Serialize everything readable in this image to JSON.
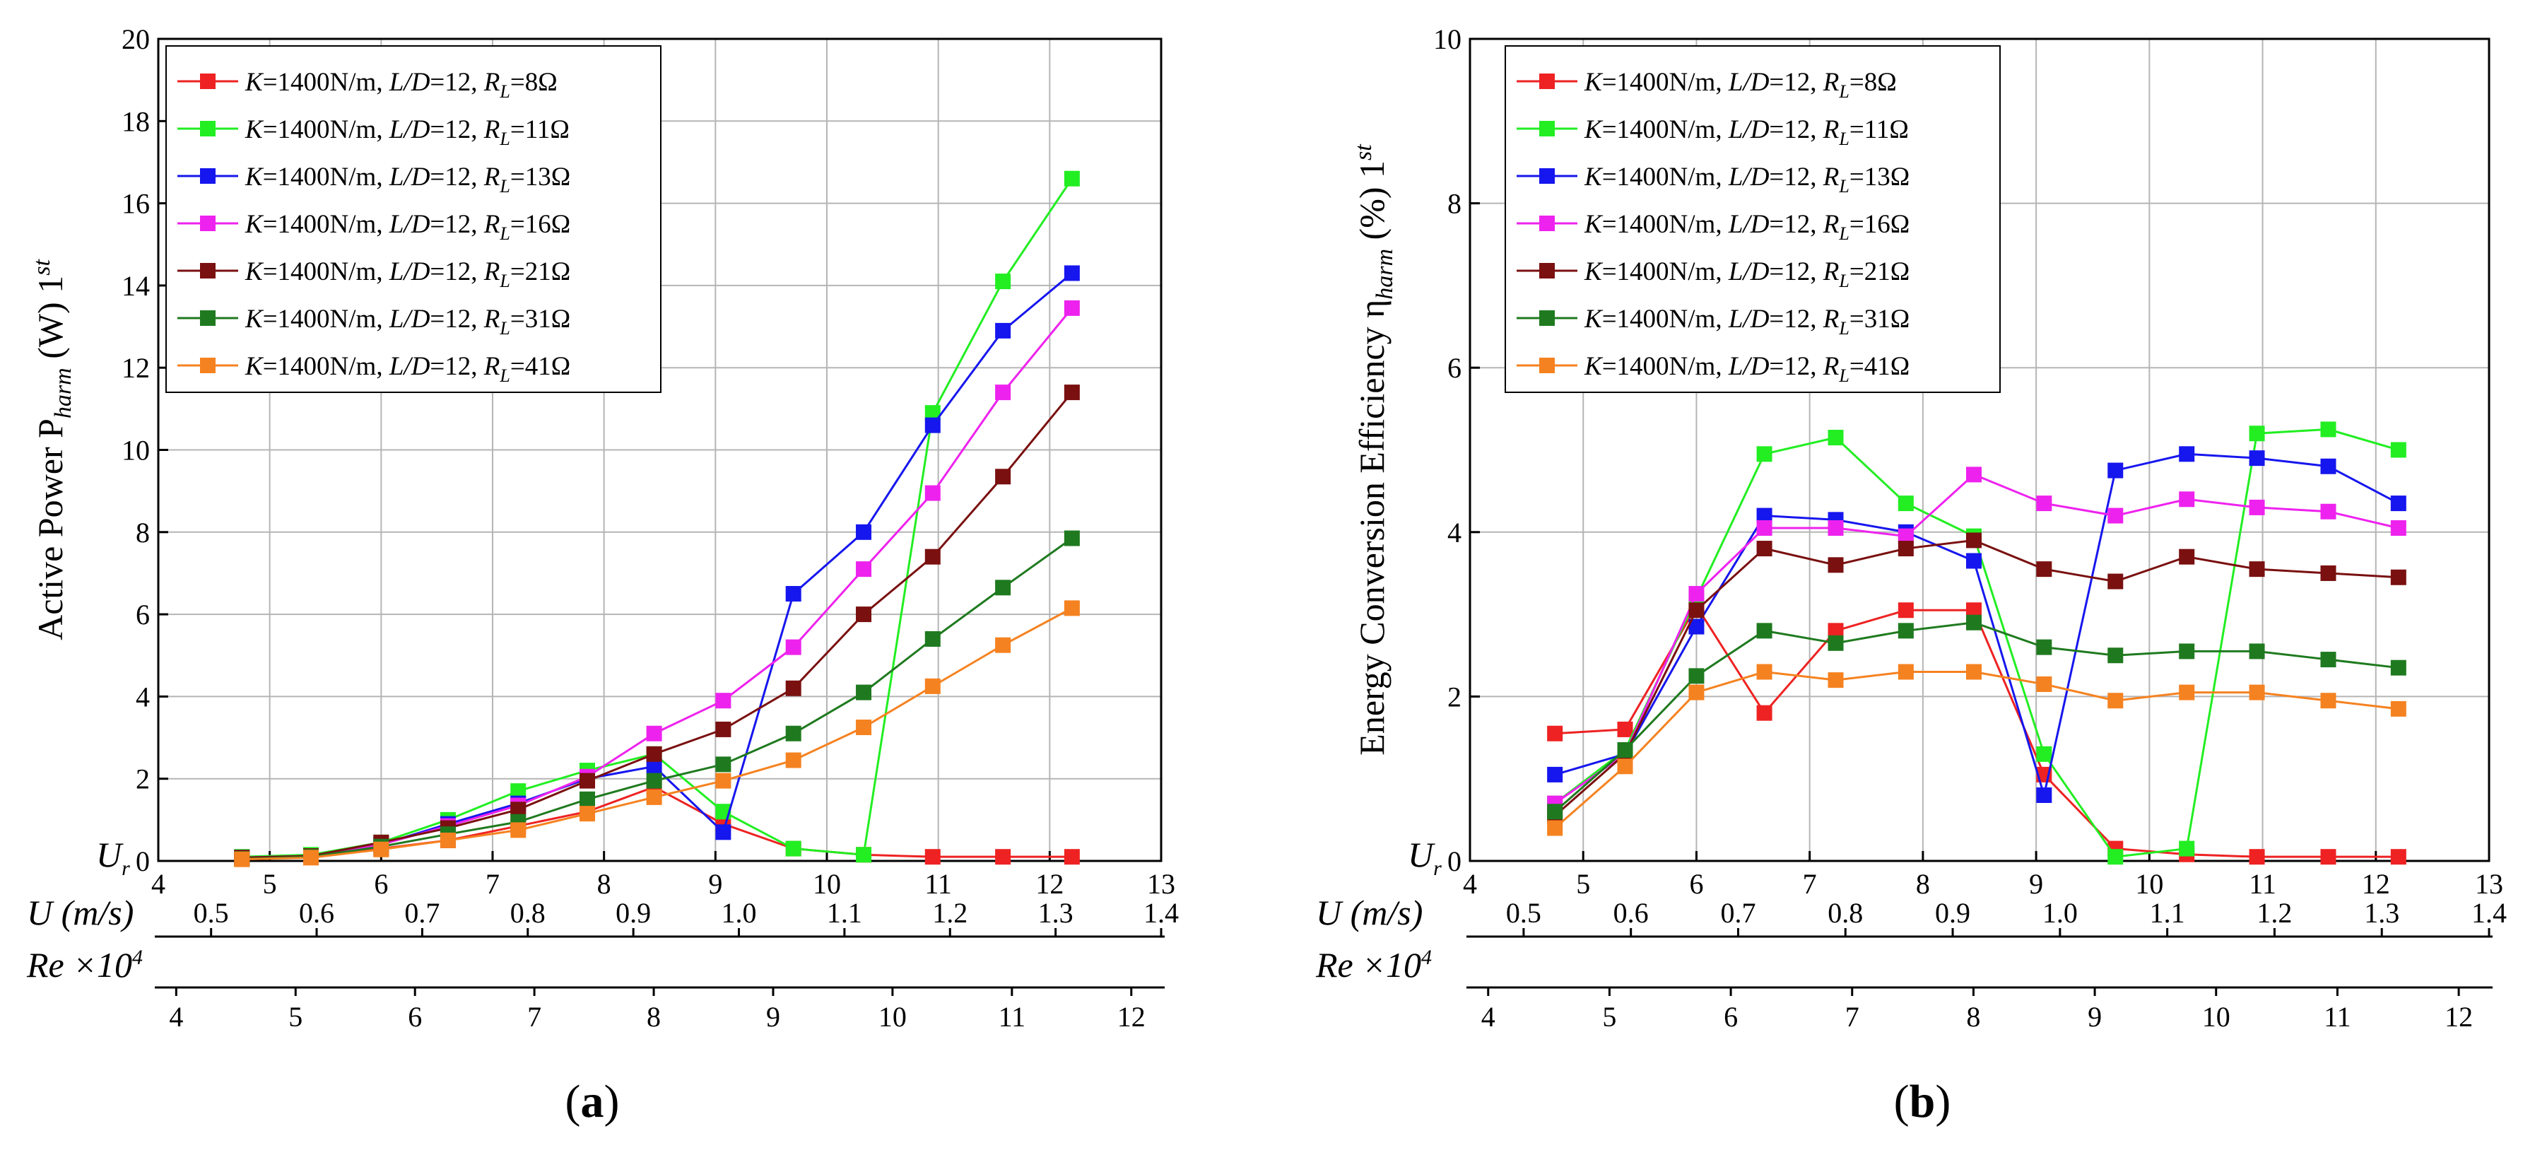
{
  "figure": {
    "panel_labels": [
      "(a)",
      "(b)"
    ]
  },
  "chart_data": [
    {
      "type": "line",
      "panel": "(a)",
      "ylabel": "Active Power P_harm (W) 1st",
      "ylabel_parts": {
        "main": "Active Power P",
        "sub": "harm",
        "unit": " (W) 1",
        "sup": "st"
      },
      "ylim": [
        0,
        20
      ],
      "yticks": [
        0,
        2,
        4,
        6,
        8,
        10,
        12,
        14,
        16,
        18,
        20
      ],
      "xlim": [
        4,
        13
      ],
      "grid": true,
      "legend_position": "top-left",
      "axes": [
        {
          "label": "U_r",
          "label_main": "U",
          "label_sub": "r",
          "range": [
            4,
            13
          ],
          "ticks": [
            4,
            5,
            6,
            7,
            8,
            9,
            10,
            11,
            12,
            13
          ]
        },
        {
          "label": "U (m/s)",
          "range": [
            0.45,
            1.4
          ],
          "ticks": [
            "0.5",
            "0.6",
            "0.7",
            "0.8",
            "0.9",
            "1.0",
            "1.1",
            "1.2",
            "1.3",
            "1.4"
          ]
        },
        {
          "label": "Re ×10^4",
          "label_main": "Re ×10",
          "label_sup": "4",
          "range": [
            3.85,
            12.25
          ],
          "ticks": [
            4,
            5,
            6,
            7,
            8,
            9,
            10,
            11,
            12
          ]
        }
      ],
      "x": [
        4.75,
        5.37,
        6.0,
        6.6,
        7.23,
        7.85,
        8.45,
        9.07,
        9.7,
        10.33,
        10.95,
        11.58,
        12.2
      ],
      "series": [
        {
          "name": "K=1400N/m, L/D=12, RL=8Ω",
          "label_parts": [
            "1400N/m, ",
            "=12, ",
            "8",
            "=8Ω"
          ],
          "color": "#ee2222",
          "values": [
            0.08,
            0.1,
            0.3,
            0.5,
            0.85,
            1.2,
            1.8,
            0.9,
            0.3,
            0.15,
            0.1,
            0.1,
            0.1
          ]
        },
        {
          "name": "K=1400N/m, L/D=12, RL=11Ω",
          "label_parts": [
            "1400N/m, ",
            "=12, ",
            "11",
            "=11Ω"
          ],
          "color": "#22ee22",
          "values": [
            0.1,
            0.15,
            0.45,
            1.0,
            1.7,
            2.2,
            2.6,
            1.2,
            0.3,
            0.15,
            10.9,
            14.1,
            16.6
          ]
        },
        {
          "name": "K=1400N/m, L/D=12, RL=13Ω",
          "label_parts": [
            "1400N/m, ",
            "=12, ",
            "13",
            "=13Ω"
          ],
          "color": "#1616ee",
          "values": [
            0.08,
            0.12,
            0.4,
            0.9,
            1.4,
            2.0,
            2.3,
            0.7,
            6.5,
            8.0,
            10.6,
            12.9,
            14.3
          ]
        },
        {
          "name": "K=1400N/m, L/D=12, RL=16Ω",
          "label_parts": [
            "1400N/m, ",
            "=12, ",
            "16",
            "=16Ω"
          ],
          "color": "#ee22ee",
          "values": [
            0.08,
            0.12,
            0.4,
            0.85,
            1.35,
            2.05,
            3.1,
            3.9,
            5.2,
            7.1,
            8.95,
            11.4,
            13.45
          ]
        },
        {
          "name": "K=1400N/m, L/D=12, RL=21Ω",
          "label_parts": [
            "1400N/m, ",
            "=12, ",
            "21",
            "=21Ω"
          ],
          "color": "#7a1010",
          "values": [
            0.08,
            0.12,
            0.45,
            0.8,
            1.25,
            1.95,
            2.6,
            3.2,
            4.2,
            6.0,
            7.4,
            9.35,
            11.4
          ]
        },
        {
          "name": "K=1400N/m, L/D=12, RL=31Ω",
          "label_parts": [
            "1400N/m, ",
            "=12, ",
            "31",
            "=31Ω"
          ],
          "color": "#1f7a1f",
          "values": [
            0.05,
            0.1,
            0.35,
            0.65,
            0.95,
            1.5,
            1.95,
            2.35,
            3.1,
            4.1,
            5.4,
            6.65,
            7.85
          ]
        },
        {
          "name": "K=1400N/m, L/D=12, RL=41Ω",
          "label_parts": [
            "1400N/m, ",
            "=12, ",
            "41",
            "=41Ω"
          ],
          "color": "#f58220",
          "values": [
            0.04,
            0.08,
            0.28,
            0.5,
            0.75,
            1.15,
            1.55,
            1.95,
            2.45,
            3.25,
            4.25,
            5.25,
            6.15
          ]
        }
      ]
    },
    {
      "type": "line",
      "panel": "(b)",
      "ylabel": "Energy Conversion Efficiency η_harm (%) 1st",
      "ylabel_parts": {
        "main": "Energy Conversion Efficiency η",
        "sub": "harm",
        "unit": " (%) 1",
        "sup": "st"
      },
      "ylim": [
        0,
        10
      ],
      "yticks": [
        0,
        2,
        4,
        6,
        8,
        10
      ],
      "xlim": [
        4,
        13
      ],
      "grid": true,
      "legend_position": "top-left",
      "axes": [
        {
          "label": "U_r",
          "label_main": "U",
          "label_sub": "r",
          "range": [
            4,
            13
          ],
          "ticks": [
            4,
            5,
            6,
            7,
            8,
            9,
            10,
            11,
            12,
            13
          ]
        },
        {
          "label": "U (m/s)",
          "range": [
            0.45,
            1.4
          ],
          "ticks": [
            "0.5",
            "0.6",
            "0.7",
            "0.8",
            "0.9",
            "1.0",
            "1.1",
            "1.2",
            "1.3",
            "1.4"
          ]
        },
        {
          "label": "Re ×10^4",
          "label_main": "Re ×10",
          "label_sup": "4",
          "range": [
            3.85,
            12.25
          ],
          "ticks": [
            4,
            5,
            6,
            7,
            8,
            9,
            10,
            11,
            12
          ]
        }
      ],
      "x": [
        4.75,
        5.37,
        6.0,
        6.6,
        7.23,
        7.85,
        8.45,
        9.07,
        9.7,
        10.33,
        10.95,
        11.58,
        12.2
      ],
      "series": [
        {
          "name": "K=1400N/m, L/D=12, RL=8Ω",
          "label_parts": [
            "1400N/m, ",
            "=12, ",
            "8",
            "=8Ω"
          ],
          "color": "#ee2222",
          "values": [
            1.55,
            1.6,
            3.1,
            1.8,
            2.8,
            3.05,
            3.05,
            1.05,
            0.15,
            0.08,
            0.05,
            0.05,
            0.05
          ]
        },
        {
          "name": "K=1400N/m, L/D=12, RL=11Ω",
          "label_parts": [
            "1400N/m, ",
            "=12, ",
            "11",
            "=11Ω"
          ],
          "color": "#22ee22",
          "values": [
            0.7,
            1.35,
            3.2,
            4.95,
            5.15,
            4.35,
            3.95,
            1.3,
            0.05,
            0.15,
            5.2,
            5.25,
            5.0
          ]
        },
        {
          "name": "K=1400N/m, L/D=12, RL=13Ω",
          "label_parts": [
            "1400N/m, ",
            "=12, ",
            "13",
            "=13Ω"
          ],
          "color": "#1616ee",
          "values": [
            1.05,
            1.3,
            2.85,
            4.2,
            4.15,
            4.0,
            3.65,
            0.8,
            4.75,
            4.95,
            4.9,
            4.8,
            4.35
          ]
        },
        {
          "name": "K=1400N/m, L/D=12, RL=16Ω",
          "label_parts": [
            "1400N/m, ",
            "=12, ",
            "16",
            "=16Ω"
          ],
          "color": "#ee22ee",
          "values": [
            0.7,
            1.3,
            3.25,
            4.05,
            4.05,
            3.95,
            4.7,
            4.35,
            4.2,
            4.4,
            4.3,
            4.25,
            4.05
          ]
        },
        {
          "name": "K=1400N/m, L/D=12, RL=21Ω",
          "label_parts": [
            "1400N/m, ",
            "=12, ",
            "21",
            "=21Ω"
          ],
          "color": "#7a1010",
          "values": [
            0.55,
            1.3,
            3.05,
            3.8,
            3.6,
            3.8,
            3.9,
            3.55,
            3.4,
            3.7,
            3.55,
            3.5,
            3.45
          ]
        },
        {
          "name": "K=1400N/m, L/D=12, RL=31Ω",
          "label_parts": [
            "1400N/m, ",
            "=12, ",
            "31",
            "=31Ω"
          ],
          "color": "#1f7a1f",
          "values": [
            0.6,
            1.35,
            2.25,
            2.8,
            2.65,
            2.8,
            2.9,
            2.6,
            2.5,
            2.55,
            2.55,
            2.45,
            2.35
          ]
        },
        {
          "name": "K=1400N/m, L/D=12, RL=41Ω",
          "label_parts": [
            "1400N/m, ",
            "=12, ",
            "41",
            "=41Ω"
          ],
          "color": "#f58220",
          "values": [
            0.4,
            1.15,
            2.05,
            2.3,
            2.2,
            2.3,
            2.3,
            2.15,
            1.95,
            2.05,
            2.05,
            1.95,
            1.85
          ]
        }
      ]
    }
  ]
}
